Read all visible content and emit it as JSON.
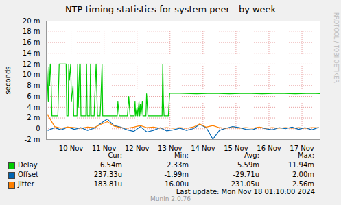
{
  "chart_data": {
    "type": "line",
    "title": "NTP timing statistics for system peer - by week",
    "y_label": "seconds",
    "grid": true,
    "xlim": [
      9.75,
      18.05
    ],
    "xticks": [
      {
        "value": 10.5,
        "label": "10 Nov"
      },
      {
        "value": 11.5,
        "label": "11 Nov"
      },
      {
        "value": 12.5,
        "label": "12 Nov"
      },
      {
        "value": 13.5,
        "label": "13 Nov"
      },
      {
        "value": 14.5,
        "label": "14 Nov"
      },
      {
        "value": 15.5,
        "label": "15 Nov"
      },
      {
        "value": 16.5,
        "label": "16 Nov"
      },
      {
        "value": 17.5,
        "label": "17 Nov"
      }
    ],
    "ylim": [
      -0.002,
      0.02
    ],
    "yticks": [
      {
        "value": -0.002,
        "label": "-2 m"
      },
      0,
      {
        "value": 0.002,
        "label": "2 m"
      },
      {
        "value": 0.004,
        "label": "4 m"
      },
      {
        "value": 0.006,
        "label": "6 m"
      },
      {
        "value": 0.008,
        "label": "8 m"
      },
      {
        "value": 0.01,
        "label": "10 m"
      },
      {
        "value": 0.012,
        "label": "12 m"
      },
      {
        "value": 0.014,
        "label": "14 m"
      },
      {
        "value": 0.016,
        "label": "16 m"
      },
      {
        "value": 0.018,
        "label": "18 m"
      },
      {
        "value": 0.02,
        "label": "20 m"
      }
    ],
    "summary_headers": [
      "Cur:",
      "Min:",
      "Avg:",
      "Max:"
    ],
    "series": [
      {
        "name": "Delay",
        "color": "#00cc00",
        "summary": [
          "6.54m",
          "2.33m",
          "5.59m",
          "11.94m"
        ],
        "x": [
          9.75,
          9.77,
          9.81,
          9.83,
          9.85,
          9.87,
          9.89,
          9.92,
          10.1,
          10.14,
          10.35,
          10.37,
          10.41,
          10.43,
          10.45,
          10.49,
          10.51,
          10.56,
          10.58,
          10.68,
          10.7,
          10.72,
          10.76,
          10.78,
          10.8,
          10.95,
          10.97,
          10.99,
          11.07,
          11.09,
          11.11,
          11.2,
          11.22,
          11.26,
          11.3,
          11.38,
          11.4,
          11.44,
          11.46,
          11.9,
          11.92,
          11.96,
          12.21,
          12.25,
          12.29,
          12.42,
          12.44,
          12.46,
          12.5,
          12.52,
          12.56,
          12.58,
          12.6,
          12.62,
          12.66,
          12.68,
          12.77,
          12.79,
          12.83,
          13.26,
          13.28,
          13.3,
          13.32,
          13.45,
          13.49,
          13.8,
          14.3,
          14.8,
          15.3,
          15.8,
          16.3,
          16.8,
          17.3,
          17.8,
          18.05
        ],
        "values": [
          0.006,
          0.011,
          0.005,
          0.0115,
          0.008,
          0.012,
          0.01,
          0.0024,
          0.0024,
          0.012,
          0.012,
          0.0024,
          0.0024,
          0.012,
          0.009,
          0.012,
          0.005,
          0.008,
          0.0024,
          0.0024,
          0.012,
          0.004,
          0.012,
          0.012,
          0.0024,
          0.0024,
          0.012,
          0.0024,
          0.0024,
          0.012,
          0.0024,
          0.0024,
          0.006,
          0.012,
          0.0024,
          0.0024,
          0.005,
          0.012,
          0.0024,
          0.0024,
          0.005,
          0.0024,
          0.0024,
          0.006,
          0.0024,
          0.0024,
          0.005,
          0.0024,
          0.004,
          0.0024,
          0.005,
          0.0024,
          0.0045,
          0.0024,
          0.005,
          0.0024,
          0.0024,
          0.0065,
          0.0024,
          0.0024,
          0.012,
          0.005,
          0.0024,
          0.0024,
          0.0066,
          0.0066,
          0.0065,
          0.0066,
          0.0065,
          0.0066,
          0.0065,
          0.0066,
          0.0065,
          0.0066,
          0.00654
        ]
      },
      {
        "name": "Offset",
        "color": "#0066b3",
        "summary": [
          "237.33u",
          "-1.99m",
          "-29.71u",
          "2.00m"
        ],
        "x": [
          9.8,
          10.0,
          10.2,
          10.4,
          10.6,
          10.8,
          11.0,
          11.2,
          11.4,
          11.6,
          11.8,
          12.0,
          12.2,
          12.4,
          12.6,
          12.8,
          13.0,
          13.2,
          13.4,
          13.6,
          13.8,
          14.0,
          14.2,
          14.4,
          14.6,
          14.8,
          15.0,
          15.2,
          15.4,
          15.6,
          15.8,
          16.0,
          16.2,
          16.4,
          16.6,
          16.8,
          17.0,
          17.2,
          17.4,
          17.6,
          17.8,
          18.0
        ],
        "values": [
          -0.0003,
          0.0002,
          -0.0002,
          0.0003,
          -0.0001,
          0.0002,
          -0.0003,
          0.0001,
          0.001,
          0.0018,
          0.0006,
          0.0003,
          -0.0002,
          -0.0005,
          0.0004,
          -0.0006,
          -0.0003,
          0.0002,
          -0.0004,
          -0.0002,
          0.0001,
          -0.0003,
          0.0,
          0.0008,
          0.0002,
          -0.00195,
          -0.0003,
          0.0001,
          0.0004,
          0.0002,
          -0.0001,
          -0.0002,
          0.0003,
          0.0,
          -0.0002,
          0.0002,
          0.0,
          0.0003,
          -0.0001,
          0.0002,
          -0.0002,
          0.00024
        ]
      },
      {
        "name": "Jitter",
        "color": "#ff8000",
        "summary": [
          "183.81u",
          "16.00u",
          "231.05u",
          "2.56m"
        ],
        "x": [
          9.8,
          10.0,
          10.2,
          10.4,
          10.6,
          10.8,
          11.0,
          11.2,
          11.4,
          11.6,
          11.8,
          12.0,
          12.2,
          12.4,
          12.6,
          12.8,
          13.0,
          13.2,
          13.4,
          13.6,
          13.8,
          14.0,
          14.2,
          14.4,
          14.6,
          14.8,
          15.0,
          15.2,
          15.4,
          15.6,
          15.8,
          16.0,
          16.2,
          16.4,
          16.6,
          16.8,
          17.0,
          17.2,
          17.4,
          17.6,
          17.8,
          18.0
        ],
        "values": [
          0.0025,
          0.0004,
          0.0001,
          0.0003,
          0.0002,
          0.0001,
          0.0003,
          0.0002,
          0.0008,
          0.0013,
          0.0005,
          0.0002,
          0.0001,
          0.0003,
          0.0006,
          0.0002,
          0.0003,
          0.0001,
          0.0002,
          0.0001,
          0.0002,
          0.0001,
          0.0003,
          0.0009,
          0.0003,
          0.0006,
          0.0002,
          0.0001,
          0.0002,
          0.0001,
          0.0002,
          0.0001,
          0.0003,
          0.0001,
          0.0002,
          0.0001,
          0.0002,
          0.0001,
          0.0002,
          0.0001,
          0.0002,
          0.00018
        ]
      }
    ],
    "last_update": "Last update: Mon Nov 18 01:10:00 2024",
    "footer": "Munin 2.0.76",
    "side_text": "RRDTOOL / TOBI OETIKER"
  }
}
